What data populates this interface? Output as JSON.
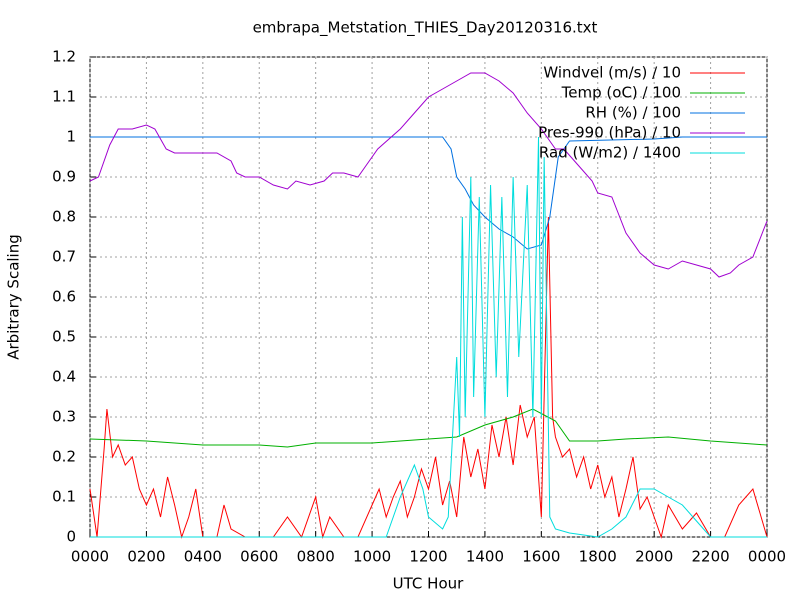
{
  "chart_data": {
    "type": "line",
    "title": "embrapa_Metstation_THIES_Day20120316.txt",
    "x_label": "UTC Hour",
    "y_label": "Arbitrary Scaling",
    "xlim": [
      0,
      24
    ],
    "xticks": [
      {
        "value": 0,
        "label": "0000"
      },
      {
        "value": 2,
        "label": "0200"
      },
      {
        "value": 4,
        "label": "0400"
      },
      {
        "value": 6,
        "label": "0600"
      },
      {
        "value": 8,
        "label": "0800"
      },
      {
        "value": 10,
        "label": "1000"
      },
      {
        "value": 12,
        "label": "1200"
      },
      {
        "value": 14,
        "label": "1400"
      },
      {
        "value": 16,
        "label": "1600"
      },
      {
        "value": 18,
        "label": "1800"
      },
      {
        "value": 20,
        "label": "2000"
      },
      {
        "value": 22,
        "label": "2200"
      },
      {
        "value": 24,
        "label": "0000"
      }
    ],
    "ylim": [
      0,
      1.2
    ],
    "yticks": [
      0,
      0.1,
      0.2,
      0.3,
      0.4,
      0.5,
      0.6,
      0.7,
      0.8,
      0.9,
      1,
      1.1,
      1.2
    ],
    "grid": true,
    "legend": "top-right",
    "series": [
      {
        "name": "Windvel (m/s) / 10",
        "color": "#ff0000",
        "x": [
          0,
          0.25,
          0.5,
          0.6,
          0.8,
          1,
          1.25,
          1.5,
          1.75,
          2,
          2.25,
          2.5,
          2.75,
          3,
          3.25,
          3.5,
          3.75,
          4,
          4.5,
          4.75,
          5,
          5.5,
          6,
          6.5,
          7,
          7.5,
          8,
          8.25,
          8.5,
          9,
          9.5,
          10,
          10.25,
          10.5,
          10.75,
          11,
          11.25,
          11.5,
          11.75,
          12,
          12.25,
          12.5,
          12.75,
          13,
          13.25,
          13.5,
          13.75,
          14,
          14.25,
          14.5,
          14.75,
          15,
          15.25,
          15.5,
          15.75,
          16,
          16.25,
          16.4,
          16.5,
          16.75,
          17,
          17.25,
          17.5,
          17.75,
          18,
          18.25,
          18.5,
          18.75,
          19,
          19.25,
          19.5,
          19.75,
          20,
          20.25,
          20.5,
          21,
          21.5,
          22,
          22.5,
          23,
          23.5,
          24
        ],
        "values": [
          0.12,
          0,
          0.22,
          0.32,
          0.2,
          0.23,
          0.18,
          0.2,
          0.12,
          0.08,
          0.12,
          0.05,
          0.15,
          0.08,
          0,
          0.05,
          0.12,
          0,
          0,
          0.08,
          0.02,
          0,
          0,
          0,
          0.05,
          0,
          0.1,
          0,
          0.05,
          0,
          0,
          0.08,
          0.12,
          0.05,
          0.1,
          0.14,
          0.05,
          0.1,
          0.17,
          0.12,
          0.2,
          0.08,
          0.14,
          0.05,
          0.25,
          0.15,
          0.22,
          0.12,
          0.28,
          0.2,
          0.3,
          0.18,
          0.33,
          0.25,
          0.3,
          0.05,
          0.8,
          0.3,
          0.25,
          0.2,
          0.22,
          0.15,
          0.2,
          0.12,
          0.18,
          0.1,
          0.15,
          0.05,
          0.12,
          0.2,
          0.07,
          0.1,
          0.05,
          0,
          0.08,
          0.02,
          0.06,
          0,
          0,
          0.08,
          0.12,
          0
        ]
      },
      {
        "name": "Temp (oC) / 100",
        "color": "#00b000",
        "x": [
          0,
          2,
          4,
          6,
          7,
          8,
          10,
          11,
          13,
          14,
          15,
          15.7,
          16.5,
          17,
          18,
          19,
          20.5,
          22,
          24
        ],
        "values": [
          0.245,
          0.24,
          0.23,
          0.23,
          0.225,
          0.235,
          0.235,
          0.24,
          0.25,
          0.28,
          0.3,
          0.32,
          0.29,
          0.24,
          0.24,
          0.245,
          0.25,
          0.24,
          0.23
        ]
      },
      {
        "name": "RH (%) / 100",
        "color": "#0070e0",
        "x": [
          0,
          12.5,
          12.8,
          13,
          13.3,
          13.6,
          14,
          14.5,
          15,
          15.5,
          16,
          16.3,
          16.6,
          17,
          20,
          21,
          24
        ],
        "values": [
          1,
          1,
          0.97,
          0.9,
          0.87,
          0.83,
          0.8,
          0.77,
          0.75,
          0.72,
          0.73,
          0.8,
          0.95,
          0.99,
          0.995,
          1,
          1
        ]
      },
      {
        "name": "Pres-990 (hPa) / 10",
        "color": "#a000d0",
        "x": [
          0,
          0.3,
          0.7,
          1,
          1.5,
          2,
          2.3,
          2.7,
          3,
          3.5,
          4,
          4.5,
          5,
          5.2,
          5.5,
          6,
          6.5,
          7,
          7.3,
          7.8,
          8.3,
          8.6,
          9,
          9.5,
          9.8,
          10.2,
          11,
          11.5,
          12,
          12.5,
          13,
          13.5,
          14,
          14.5,
          15,
          15.5,
          16,
          16.5,
          16.8,
          17.3,
          17.8,
          18,
          18.5,
          19,
          19.5,
          20,
          20.5,
          21,
          21.5,
          22,
          22.3,
          22.7,
          23,
          23.5,
          24
        ],
        "values": [
          0.89,
          0.9,
          0.98,
          1.02,
          1.02,
          1.03,
          1.02,
          0.97,
          0.96,
          0.96,
          0.96,
          0.96,
          0.94,
          0.91,
          0.9,
          0.9,
          0.88,
          0.87,
          0.89,
          0.88,
          0.89,
          0.91,
          0.91,
          0.9,
          0.93,
          0.97,
          1.02,
          1.06,
          1.1,
          1.12,
          1.14,
          1.16,
          1.16,
          1.14,
          1.11,
          1.06,
          1.02,
          0.97,
          0.97,
          0.93,
          0.89,
          0.86,
          0.85,
          0.76,
          0.71,
          0.68,
          0.67,
          0.69,
          0.68,
          0.67,
          0.65,
          0.66,
          0.68,
          0.7,
          0.79
        ]
      },
      {
        "name": "Rad (W/m2) / 1400",
        "color": "#00dddd",
        "x": [
          0,
          10.5,
          11,
          11.5,
          11.8,
          12,
          12.5,
          12.7,
          13,
          13.1,
          13.2,
          13.3,
          13.5,
          13.6,
          13.8,
          14,
          14.2,
          14.4,
          14.6,
          14.8,
          15,
          15.2,
          15.5,
          15.7,
          15.9,
          16,
          16.1,
          16.3,
          16.5,
          17,
          18,
          18.5,
          19,
          19.5,
          20,
          20.5,
          21,
          21.5,
          22,
          24
        ],
        "values": [
          0,
          0,
          0.1,
          0.18,
          0.12,
          0.05,
          0.02,
          0.05,
          0.45,
          0.25,
          0.8,
          0.3,
          0.9,
          0.35,
          0.85,
          0.3,
          0.88,
          0.4,
          0.85,
          0.35,
          0.9,
          0.45,
          0.88,
          0.3,
          1,
          0.3,
          0.95,
          0.05,
          0.02,
          0.01,
          0,
          0.02,
          0.05,
          0.12,
          0.12,
          0.1,
          0.08,
          0.04,
          0,
          0
        ]
      }
    ]
  }
}
